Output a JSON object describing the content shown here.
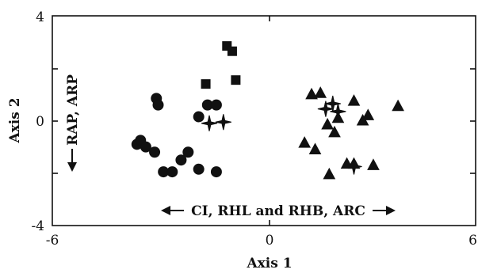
{
  "chart_data": {
    "type": "scatter",
    "xlabel": "Axis 1",
    "ylabel": "Axis 2",
    "xlim": [
      -6,
      6
    ],
    "ylim": [
      -4,
      4
    ],
    "x_tick_labels": [
      "-6",
      "0",
      "6"
    ],
    "y_tick_labels": [
      "4",
      "0",
      "-4"
    ],
    "grid": false,
    "annotations": {
      "horizontal": "CI, RHL and RHB, ARC",
      "vertical": "RAP, ARP"
    },
    "series": [
      {
        "marker": "square",
        "x": [
          -1.05,
          -0.9,
          -0.8,
          -1.65
        ],
        "y": [
          2.85,
          2.65,
          1.55,
          1.4
        ]
      },
      {
        "marker": "circle",
        "x": [
          -3.05,
          -3.0,
          -3.6,
          -3.5,
          -3.35,
          -3.1,
          -1.85,
          -1.6,
          -1.35,
          -2.85,
          -2.6,
          -2.35,
          -2.15,
          -1.85,
          -1.35
        ],
        "y": [
          0.85,
          0.6,
          -0.9,
          -0.75,
          -1.0,
          -1.2,
          0.15,
          0.6,
          0.6,
          -1.95,
          -1.95,
          -1.5,
          -1.2,
          -1.85,
          -1.95
        ]
      },
      {
        "marker": "star",
        "x": [
          -1.55,
          -1.15,
          1.75,
          1.95,
          2.1,
          2.55
        ],
        "y": [
          -0.1,
          -0.05,
          0.45,
          0.65,
          0.35,
          -1.75
        ]
      },
      {
        "marker": "triangle",
        "x": [
          1.35,
          1.6,
          1.15,
          1.45,
          1.8,
          2.0,
          2.1,
          2.55,
          2.8,
          2.95,
          3.1,
          3.8,
          1.85,
          2.35,
          2.55
        ],
        "y": [
          1.0,
          1.05,
          -0.85,
          -1.1,
          -0.15,
          -0.45,
          0.1,
          0.75,
          0.0,
          0.2,
          -1.7,
          0.55,
          -2.05,
          -1.65,
          -1.65
        ]
      }
    ]
  }
}
